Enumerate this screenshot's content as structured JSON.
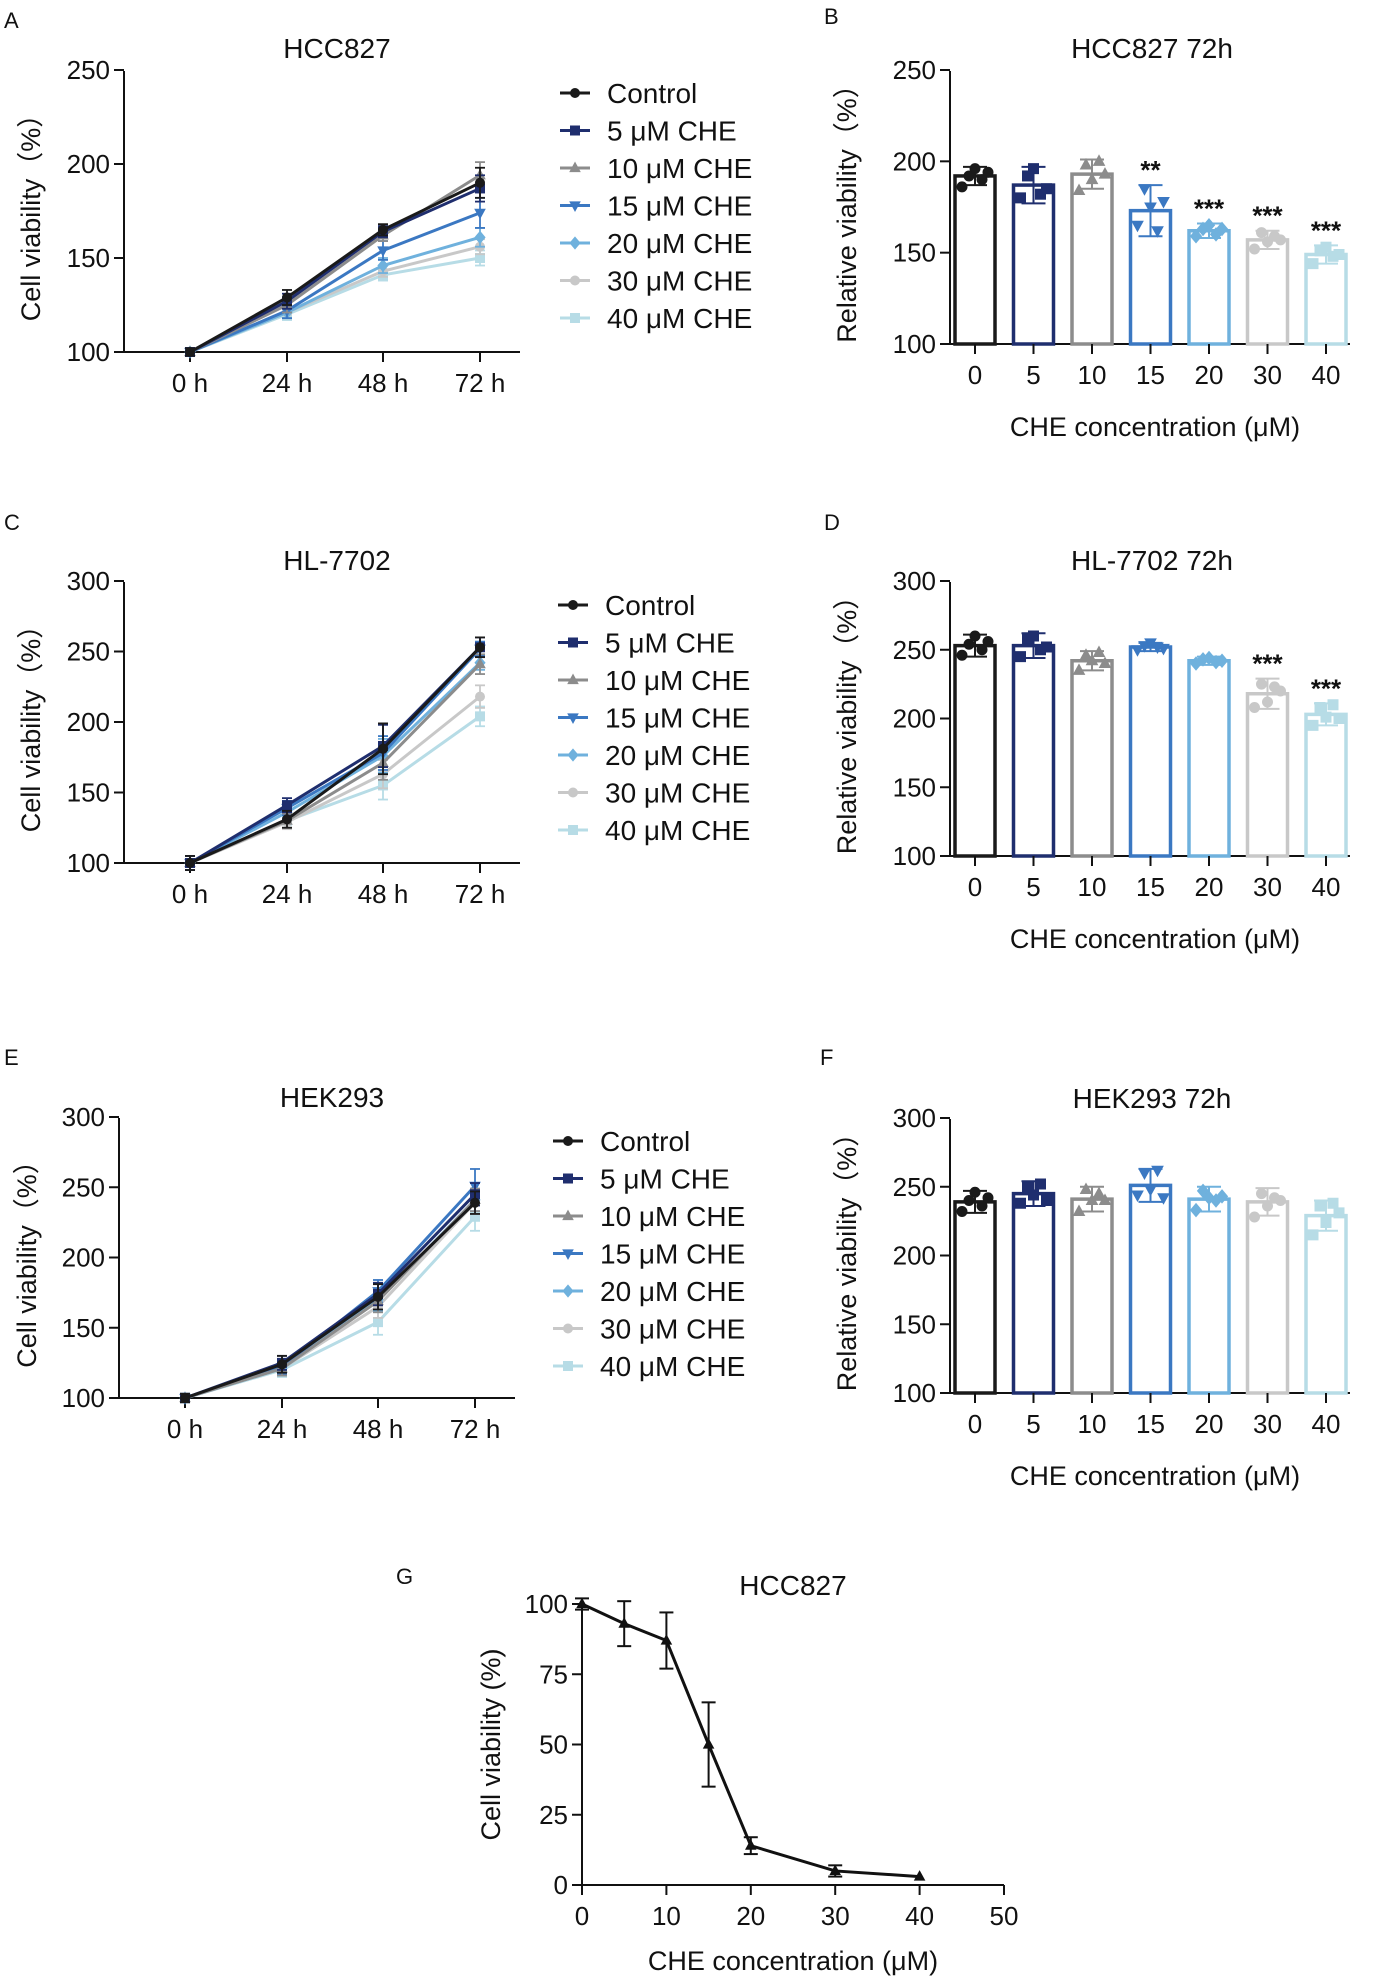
{
  "chart_data": [
    {
      "panel": "A",
      "type": "line",
      "title": "HCC827",
      "xlabel": "",
      "ylabel": "Cell viability（%）",
      "categories": [
        "0 h",
        "24 h",
        "48 h",
        "72 h"
      ],
      "ylim": [
        100,
        250
      ],
      "yticks": [
        "100",
        "150",
        "200",
        "250"
      ],
      "series": [
        {
          "name": "Control",
          "color": "#1a1a1a",
          "marker": "circle",
          "values": [
            100,
            129,
            165,
            190
          ],
          "err": [
            2,
            4,
            3,
            8
          ]
        },
        {
          "name": "5 μM CHE",
          "color": "#1f2e6e",
          "marker": "square",
          "values": [
            100,
            127,
            164,
            187
          ],
          "err": [
            2,
            4,
            3,
            7
          ]
        },
        {
          "name": "10 μM CHE",
          "color": "#8c8c8c",
          "marker": "triangle-up",
          "values": [
            100,
            125,
            162,
            194
          ],
          "err": [
            2,
            4,
            3,
            7
          ]
        },
        {
          "name": "15 μM CHE",
          "color": "#3b78c2",
          "marker": "triangle-down",
          "values": [
            100,
            122,
            154,
            174
          ],
          "err": [
            2,
            4,
            5,
            8
          ]
        },
        {
          "name": "20 μM CHE",
          "color": "#6fb1dd",
          "marker": "diamond",
          "values": [
            100,
            121,
            146,
            161
          ],
          "err": [
            2,
            3,
            4,
            5
          ]
        },
        {
          "name": "30 μM CHE",
          "color": "#c8c8c8",
          "marker": "circle",
          "values": [
            100,
            121,
            143,
            156
          ],
          "err": [
            2,
            3,
            3,
            4
          ]
        },
        {
          "name": "40 μM CHE",
          "color": "#b7dce6",
          "marker": "square",
          "values": [
            100,
            120,
            141,
            150
          ],
          "err": [
            2,
            3,
            3,
            4
          ]
        }
      ]
    },
    {
      "panel": "B",
      "type": "bar",
      "title": "HCC827 72h",
      "xlabel": "CHE concentration (μM)",
      "ylabel": "Relative viability（%）",
      "categories": [
        "0",
        "5",
        "10",
        "15",
        "20",
        "30",
        "40"
      ],
      "ylim": [
        100,
        250
      ],
      "yticks": [
        "100",
        "150",
        "200",
        "250"
      ],
      "colors": [
        "#1a1a1a",
        "#1f2e6e",
        "#8c8c8c",
        "#3b78c2",
        "#6fb1dd",
        "#c8c8c8",
        "#b7dce6"
      ],
      "markers": [
        "circle",
        "square",
        "triangle-up",
        "triangle-down",
        "diamond",
        "circle",
        "square"
      ],
      "values": [
        192,
        187,
        193,
        173,
        162,
        157,
        149
      ],
      "err": [
        5,
        10,
        8,
        14,
        4,
        5,
        5
      ],
      "points": [
        [
          186,
          192,
          196,
          190,
          194
        ],
        [
          180,
          192,
          196,
          182,
          185
        ],
        [
          184,
          198,
          190,
          200,
          193
        ],
        [
          165,
          185,
          175,
          162,
          178
        ],
        [
          159,
          163,
          165,
          160,
          163
        ],
        [
          152,
          161,
          156,
          159,
          157
        ],
        [
          144,
          151,
          153,
          148,
          149
        ]
      ],
      "significance": [
        "",
        "",
        "",
        "**",
        "***",
        "***",
        "***"
      ]
    },
    {
      "panel": "C",
      "type": "line",
      "title": "HL-7702",
      "xlabel": "",
      "ylabel": "Cell viability（%）",
      "categories": [
        "0 h",
        "24 h",
        "48 h",
        "72 h"
      ],
      "ylim": [
        100,
        300
      ],
      "yticks": [
        "100",
        "150",
        "200",
        "250",
        "300"
      ],
      "series": [
        {
          "name": "Control",
          "color": "#1a1a1a",
          "marker": "circle",
          "values": [
            100,
            131,
            181,
            253
          ],
          "err": [
            5,
            6,
            18,
            7
          ]
        },
        {
          "name": "5 μM CHE",
          "color": "#1f2e6e",
          "marker": "square",
          "values": [
            100,
            141,
            183,
            253
          ],
          "err": [
            5,
            5,
            15,
            7
          ]
        },
        {
          "name": "10 μM CHE",
          "color": "#8c8c8c",
          "marker": "triangle-up",
          "values": [
            100,
            130,
            171,
            241
          ],
          "err": [
            5,
            5,
            12,
            7
          ]
        },
        {
          "name": "15 μM CHE",
          "color": "#3b78c2",
          "marker": "triangle-down",
          "values": [
            100,
            139,
            178,
            252
          ],
          "err": [
            5,
            5,
            12,
            5
          ]
        },
        {
          "name": "20 μM CHE",
          "color": "#6fb1dd",
          "marker": "diamond",
          "values": [
            100,
            136,
            176,
            242
          ],
          "err": [
            5,
            5,
            12,
            5
          ]
        },
        {
          "name": "30 μM CHE",
          "color": "#c8c8c8",
          "marker": "circle",
          "values": [
            100,
            129,
            163,
            218
          ],
          "err": [
            5,
            5,
            10,
            8
          ]
        },
        {
          "name": "40 μM CHE",
          "color": "#b7dce6",
          "marker": "square",
          "values": [
            100,
            130,
            155,
            204
          ],
          "err": [
            5,
            5,
            10,
            7
          ]
        }
      ]
    },
    {
      "panel": "D",
      "type": "bar",
      "title": "HL-7702 72h",
      "xlabel": "CHE concentration (μM)",
      "ylabel": "Relative viability（%）",
      "categories": [
        "0",
        "5",
        "10",
        "15",
        "20",
        "30",
        "40"
      ],
      "ylim": [
        100,
        300
      ],
      "yticks": [
        "100",
        "150",
        "200",
        "250",
        "300"
      ],
      "colors": [
        "#1a1a1a",
        "#1f2e6e",
        "#8c8c8c",
        "#3b78c2",
        "#6fb1dd",
        "#c8c8c8",
        "#b7dce6"
      ],
      "markers": [
        "circle",
        "square",
        "triangle-up",
        "triangle-down",
        "diamond",
        "circle",
        "square"
      ],
      "values": [
        253,
        253,
        242,
        252,
        242,
        218,
        203
      ],
      "err": [
        8,
        9,
        7,
        3,
        3,
        11,
        8
      ],
      "points": [
        [
          246,
          254,
          260,
          250,
          256
        ],
        [
          245,
          258,
          260,
          250,
          252
        ],
        [
          235,
          246,
          242,
          248,
          240
        ],
        [
          250,
          253,
          255,
          252,
          251
        ],
        [
          240,
          243,
          244,
          241,
          242
        ],
        [
          208,
          225,
          212,
          223,
          220
        ],
        [
          195,
          208,
          201,
          210,
          200
        ]
      ],
      "significance": [
        "",
        "",
        "",
        "",
        "",
        "***",
        "***"
      ]
    },
    {
      "panel": "E",
      "type": "line",
      "title": "HEK293",
      "xlabel": "",
      "ylabel": "Cell viability（%）",
      "categories": [
        "0 h",
        "24 h",
        "48 h",
        "72 h"
      ],
      "ylim": [
        100,
        300
      ],
      "yticks": [
        "100",
        "150",
        "200",
        "250",
        "300"
      ],
      "series": [
        {
          "name": "Control",
          "color": "#1a1a1a",
          "marker": "circle",
          "values": [
            100,
            124,
            172,
            239
          ],
          "err": [
            3,
            6,
            9,
            8
          ]
        },
        {
          "name": "5 μM CHE",
          "color": "#1f2e6e",
          "marker": "square",
          "values": [
            100,
            125,
            174,
            245
          ],
          "err": [
            3,
            5,
            8,
            8
          ]
        },
        {
          "name": "10 μM CHE",
          "color": "#8c8c8c",
          "marker": "triangle-up",
          "values": [
            100,
            121,
            169,
            241
          ],
          "err": [
            3,
            5,
            8,
            8
          ]
        },
        {
          "name": "15 μM CHE",
          "color": "#3b78c2",
          "marker": "triangle-down",
          "values": [
            100,
            122,
            176,
            251
          ],
          "err": [
            3,
            5,
            8,
            12
          ]
        },
        {
          "name": "20 μM CHE",
          "color": "#6fb1dd",
          "marker": "diamond",
          "values": [
            100,
            121,
            170,
            241
          ],
          "err": [
            3,
            5,
            8,
            8
          ]
        },
        {
          "name": "30 μM CHE",
          "color": "#c8c8c8",
          "marker": "circle",
          "values": [
            100,
            121,
            165,
            239
          ],
          "err": [
            3,
            5,
            8,
            8
          ]
        },
        {
          "name": "40 μM CHE",
          "color": "#b7dce6",
          "marker": "square",
          "values": [
            100,
            120,
            154,
            229
          ],
          "err": [
            3,
            5,
            9,
            10
          ]
        }
      ]
    },
    {
      "panel": "F",
      "type": "bar",
      "title": "HEK293 72h",
      "xlabel": "CHE concentration (μM)",
      "ylabel": "Relative viability（%）",
      "categories": [
        "0",
        "5",
        "10",
        "15",
        "20",
        "30",
        "40"
      ],
      "ylim": [
        100,
        300
      ],
      "yticks": [
        "100",
        "150",
        "200",
        "250",
        "300"
      ],
      "colors": [
        "#1a1a1a",
        "#1f2e6e",
        "#8c8c8c",
        "#3b78c2",
        "#6fb1dd",
        "#c8c8c8",
        "#b7dce6"
      ],
      "markers": [
        "circle",
        "square",
        "triangle-up",
        "triangle-down",
        "diamond",
        "circle",
        "square"
      ],
      "values": [
        239,
        245,
        241,
        251,
        241,
        239,
        229
      ],
      "err": [
        8,
        9,
        9,
        12,
        9,
        10,
        11
      ],
      "points": [
        [
          232,
          240,
          246,
          236,
          242
        ],
        [
          238,
          250,
          244,
          252,
          240
        ],
        [
          232,
          248,
          240,
          245,
          240
        ],
        [
          244,
          260,
          248,
          262,
          242
        ],
        [
          233,
          247,
          242,
          240,
          243
        ],
        [
          228,
          245,
          236,
          242,
          240
        ],
        [
          215,
          236,
          224,
          238,
          231
        ]
      ],
      "significance": [
        "",
        "",
        "",
        "",
        "",
        "",
        ""
      ]
    },
    {
      "panel": "G",
      "type": "line",
      "title": "HCC827",
      "xlabel": "CHE concentration (μM)",
      "ylabel": "Cell viability (%)",
      "x": [
        0,
        5,
        10,
        15,
        20,
        30,
        40
      ],
      "xlim": [
        0,
        50
      ],
      "xticks": [
        "0",
        "10",
        "20",
        "30",
        "40",
        "50"
      ],
      "ylim": [
        0,
        100
      ],
      "yticks": [
        "0",
        "25",
        "50",
        "75",
        "100"
      ],
      "series": [
        {
          "name": "HCC827",
          "color": "#111111",
          "marker": "triangle-up",
          "values": [
            100,
            93,
            87,
            50,
            14,
            5,
            3
          ],
          "err": [
            2,
            8,
            10,
            15,
            3,
            2,
            0
          ]
        }
      ]
    }
  ]
}
